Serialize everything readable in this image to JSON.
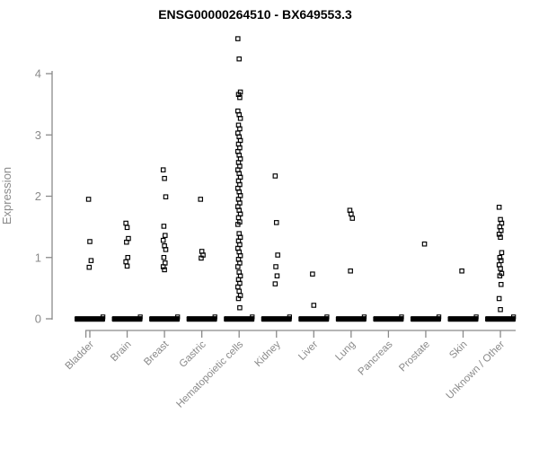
{
  "chart_data": {
    "type": "scatter",
    "subtype": "strip-plot",
    "title": "ENSG00000264510 - BX649553.3",
    "xlabel": "",
    "ylabel": "Expression",
    "ylim": [
      0,
      4.7
    ],
    "yticks": [
      0,
      1,
      2,
      3,
      4
    ],
    "grid": false,
    "legend": "none",
    "marker": "open-square",
    "colors": {
      "marker": "#000000",
      "zero_cluster": "#000000",
      "axis": "#8a8a8a",
      "tick_label": "#8a8a8a",
      "axis_label": "#8a8a8a",
      "title": "#000000",
      "background": "#ffffff"
    },
    "categories": [
      {
        "label": "Bladder",
        "zero_cluster": true,
        "values": [
          1.95,
          1.26,
          0.95,
          0.84
        ]
      },
      {
        "label": "Brain",
        "zero_cluster": true,
        "values": [
          1.56,
          1.49,
          1.31,
          1.25,
          1.0,
          0.93,
          0.86
        ]
      },
      {
        "label": "Breast",
        "zero_cluster": true,
        "values": [
          2.43,
          2.29,
          1.99,
          1.51,
          1.36,
          1.28,
          1.19,
          1.13,
          1.0,
          0.91,
          0.85,
          0.8
        ]
      },
      {
        "label": "Gastric",
        "zero_cluster": true,
        "values": [
          1.95,
          1.1,
          1.04,
          0.99
        ]
      },
      {
        "label": "Hematopoietic cells",
        "zero_cluster": true,
        "values": [
          4.57,
          4.24,
          3.7,
          3.66,
          3.61,
          3.39,
          3.33,
          3.27,
          3.16,
          3.1,
          3.03,
          2.97,
          2.91,
          2.85,
          2.79,
          2.73,
          2.67,
          2.61,
          2.55,
          2.49,
          2.43,
          2.37,
          2.31,
          2.25,
          2.19,
          2.13,
          2.07,
          2.01,
          1.95,
          1.89,
          1.83,
          1.77,
          1.71,
          1.65,
          1.58,
          1.54,
          1.39,
          1.33,
          1.27,
          1.21,
          1.15,
          1.09,
          1.03,
          0.97,
          0.91,
          0.85,
          0.76,
          0.7,
          0.64,
          0.58,
          0.52,
          0.45,
          0.38,
          0.33,
          0.18
        ]
      },
      {
        "label": "Kidney",
        "zero_cluster": true,
        "values": [
          2.33,
          1.57,
          1.04,
          0.85,
          0.7,
          0.57
        ]
      },
      {
        "label": "Liver",
        "zero_cluster": true,
        "values": [
          0.73,
          0.22
        ]
      },
      {
        "label": "Lung",
        "zero_cluster": true,
        "values": [
          1.77,
          1.71,
          1.64,
          0.78
        ]
      },
      {
        "label": "Pancreas",
        "zero_cluster": true,
        "values": []
      },
      {
        "label": "Prostate",
        "zero_cluster": true,
        "values": [
          1.22
        ]
      },
      {
        "label": "Skin",
        "zero_cluster": true,
        "values": [
          0.78
        ]
      },
      {
        "label": "Unknown / Other",
        "zero_cluster": true,
        "values": [
          1.82,
          1.62,
          1.56,
          1.5,
          1.44,
          1.38,
          1.33,
          1.08,
          1.0,
          0.95,
          0.88,
          0.82,
          0.74,
          0.7,
          0.56,
          0.33,
          0.15
        ]
      }
    ]
  }
}
